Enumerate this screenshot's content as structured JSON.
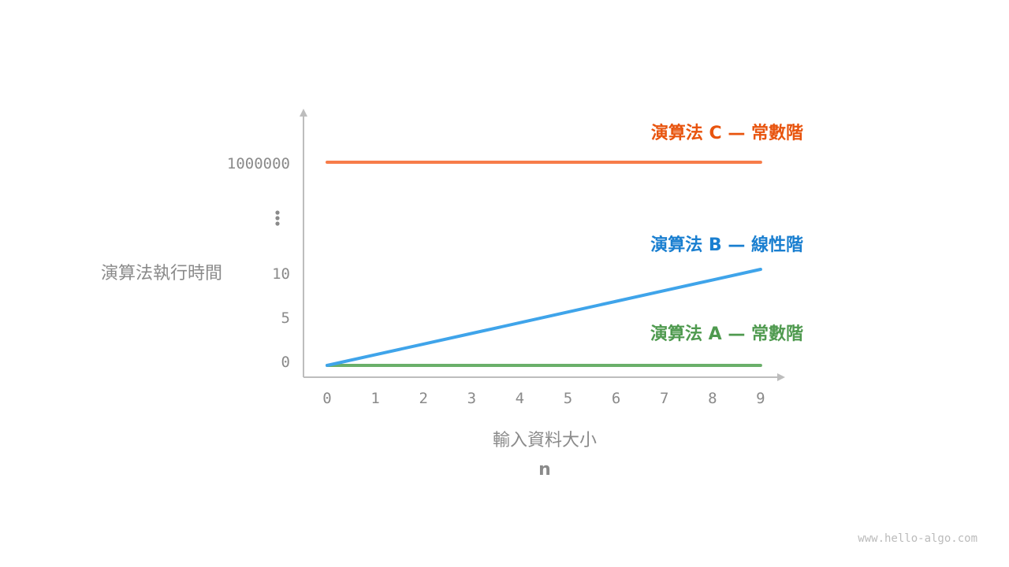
{
  "chart_data": {
    "type": "line",
    "xlabel": "輸入資料大小",
    "xlabel_var": "n",
    "ylabel": "演算法執行時間",
    "x": [
      0,
      1,
      2,
      3,
      4,
      5,
      6,
      7,
      8,
      9
    ],
    "x_ticks": [
      "0",
      "1",
      "2",
      "3",
      "4",
      "5",
      "6",
      "7",
      "8",
      "9"
    ],
    "y_ticks": [
      "0",
      "5",
      "10",
      "⋮",
      "1000000"
    ],
    "y_axis_broken": true,
    "grid": false,
    "series": [
      {
        "name": "演算法 A — 常數階",
        "values": [
          0,
          0,
          0,
          0,
          0,
          0,
          0,
          0,
          0,
          0
        ],
        "color": "#6aaf6a",
        "label_color": "#4f9a4f"
      },
      {
        "name": "演算法 B — 線性階",
        "values": [
          0,
          1.11,
          2.22,
          3.33,
          4.44,
          5.56,
          6.67,
          7.78,
          8.89,
          10
        ],
        "color": "#3fa4ea",
        "label_color": "#1a7fd0"
      },
      {
        "name": "演算法 C — 常數階",
        "values": [
          1000000,
          1000000,
          1000000,
          1000000,
          1000000,
          1000000,
          1000000,
          1000000,
          1000000,
          1000000
        ],
        "color": "#f77c4a",
        "label_color": "#e8540e"
      }
    ],
    "axis_color": "#bdbdbd"
  },
  "watermark": "www.hello-algo.com"
}
